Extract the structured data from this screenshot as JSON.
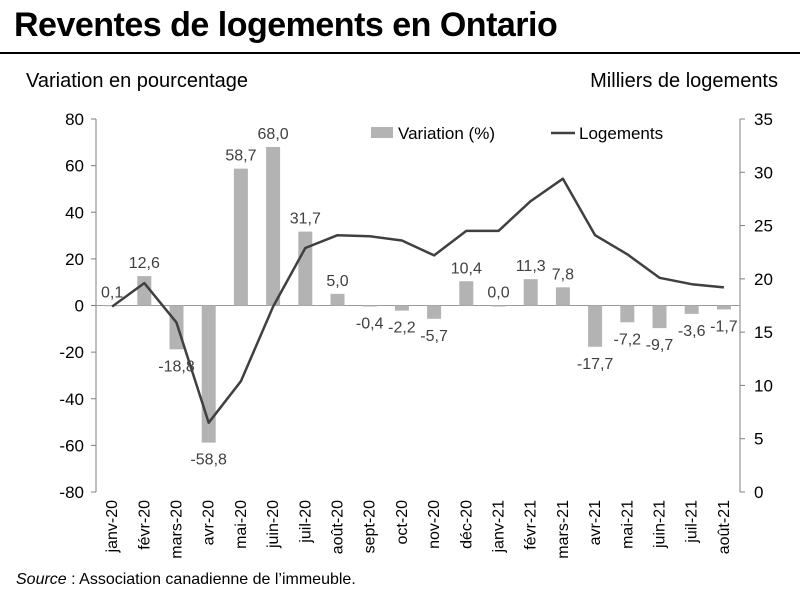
{
  "title": "Reventes de logements en Ontario",
  "source": {
    "label": "Source",
    "text": " : Association canadienne de l’immeuble."
  },
  "chart_data": {
    "type": "bar",
    "title": "Reventes de logements en Ontario",
    "ylabel": "Variation en pourcentage",
    "y2label": "Milliers de logements",
    "ylim": [
      -80,
      80
    ],
    "y2lim": [
      0,
      35
    ],
    "yticks": [
      80,
      60,
      40,
      20,
      0,
      -20,
      -40,
      -60,
      -80
    ],
    "y2ticks": [
      35,
      30,
      25,
      20,
      15,
      10,
      5,
      0
    ],
    "legend_position": "top-center",
    "categories": [
      "janv-20",
      "févr-20",
      "mars-20",
      "avr-20",
      "mai-20",
      "juin-20",
      "juil-20",
      "août-20",
      "sept-20",
      "oct-20",
      "nov-20",
      "déc-20",
      "janv-21",
      "févr-21",
      "mars-21",
      "avr-21",
      "mai-21",
      "juin-21",
      "juil-21",
      "août-21"
    ],
    "series": [
      {
        "name": "Variation (%)",
        "type": "bar",
        "axis": "left",
        "color": "#b3b3b3",
        "values": [
          0.1,
          12.6,
          -18.8,
          -58.8,
          58.7,
          68.0,
          31.7,
          5.0,
          -0.4,
          -2.2,
          -5.7,
          10.4,
          0.0,
          11.3,
          7.8,
          -17.7,
          -7.2,
          -9.7,
          -3.6,
          -1.7
        ],
        "labels": [
          "0,1",
          "12,6",
          "-18,8",
          "-58,8",
          "58,7",
          "68,0",
          "31,7",
          "5,0",
          "-0,4",
          "-2,2",
          "-5,7",
          "10,4",
          "0,0",
          "11,3",
          "7,8",
          "-17,7",
          "-7,2",
          "-9,7",
          "-3,6",
          "-1,7"
        ]
      },
      {
        "name": "Logements",
        "type": "line",
        "axis": "right",
        "color": "#404040",
        "values": [
          17.4,
          19.6,
          15.9,
          6.5,
          10.4,
          17.4,
          22.9,
          24.1,
          24.0,
          23.6,
          22.2,
          24.5,
          24.5,
          27.3,
          29.4,
          24.1,
          22.3,
          20.1,
          19.5,
          19.2
        ]
      }
    ]
  }
}
